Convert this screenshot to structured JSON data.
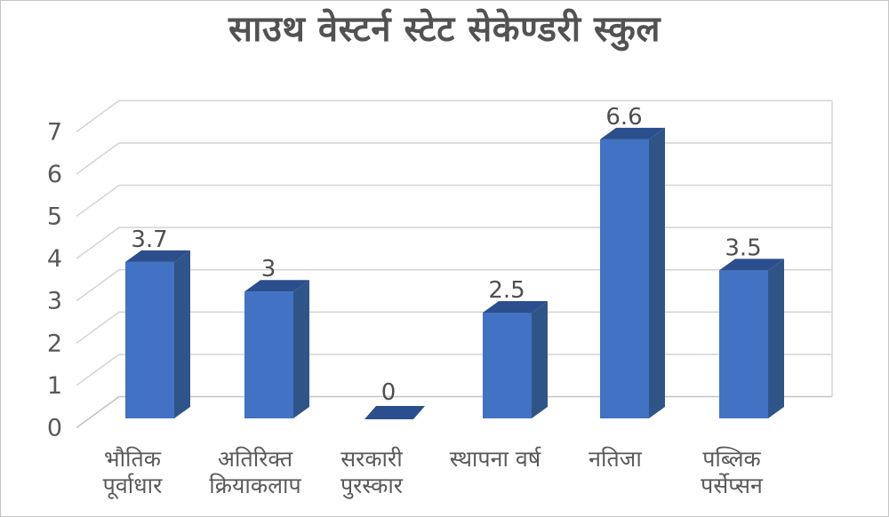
{
  "chart_data": {
    "type": "bar",
    "style": "3d-column",
    "title": "साउथ वेस्टर्न स्टेट सेकेण्डरी स्कुल",
    "categories": [
      "भौतिक पूर्वाधार",
      "अतिरिक्त क्रियाकलाप",
      "सरकारी पुरस्कार",
      "स्थापना वर्ष",
      "नतिजा",
      "पब्लिक पर्सेप्सन"
    ],
    "category_lines": [
      [
        "भौतिक",
        "पूर्वाधार"
      ],
      [
        "अतिरिक्त",
        "क्रियाकलाप"
      ],
      [
        "सरकारी",
        "पुरस्कार"
      ],
      [
        "स्थापना वर्ष"
      ],
      [
        "नतिजा"
      ],
      [
        "पब्लिक",
        "पर्सेप्सन"
      ]
    ],
    "values": [
      3.7,
      3,
      0,
      2.5,
      6.6,
      3.5
    ],
    "data_labels": [
      "3.7",
      "3",
      "0",
      "2.5",
      "6.6",
      "3.5"
    ],
    "y_ticks": [
      0,
      1,
      2,
      3,
      4,
      5,
      6,
      7
    ],
    "ylim": [
      0,
      7
    ],
    "xlabel": "",
    "ylabel": "",
    "grid": true,
    "legend": "none",
    "colors": {
      "bar_front": "#4272C3",
      "bar_top": "#2B4E8C",
      "bar_side": "#2F5588",
      "gridline": "#D6D6D6",
      "baseline": "#C4C4C4",
      "axis_text": "#595959",
      "value_text": "#4F4F4F",
      "title_text": "#525252",
      "background": "#FFFFFF"
    }
  }
}
